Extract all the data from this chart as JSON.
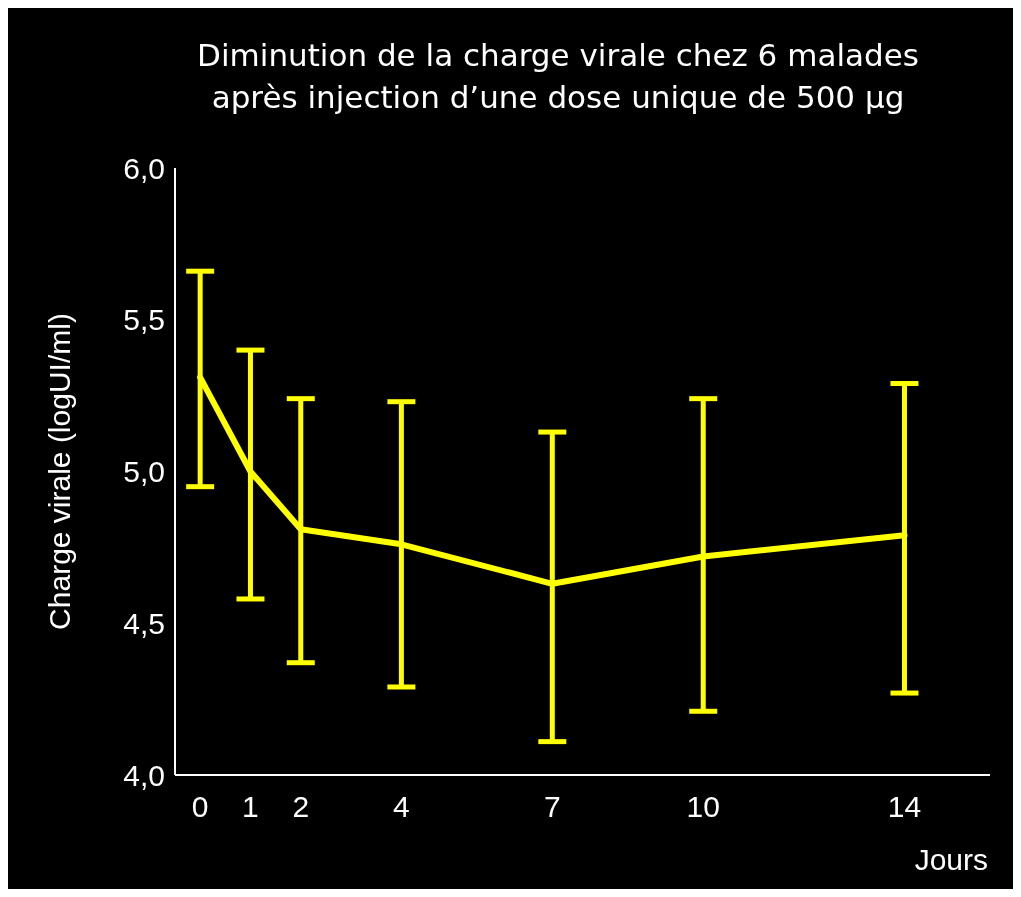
{
  "chart_data": {
    "type": "line",
    "title": "Diminution de la charge virale chez 6 malades\naprès injection d’une dose unique de 500 µg",
    "xlabel": "Jours",
    "ylabel": "Charge virale (logUI/ml)",
    "x": [
      0,
      1,
      2,
      4,
      7,
      10,
      14
    ],
    "series": [
      {
        "color": "#ffff00",
        "values": [
          5.31,
          5.0,
          4.81,
          4.76,
          4.63,
          4.72,
          4.79
        ],
        "errors": [
          [
            4.95,
            5.66
          ],
          [
            4.58,
            5.4
          ],
          [
            4.37,
            5.24
          ],
          [
            4.29,
            5.23
          ],
          [
            4.11,
            5.13
          ],
          [
            4.21,
            5.24
          ],
          [
            4.27,
            5.29
          ]
        ]
      }
    ],
    "xlim": [
      -0.5,
      15.7
    ],
    "xticks": [
      0,
      1,
      2,
      4,
      7,
      10,
      14
    ],
    "ylim": [
      4.0,
      6.0
    ],
    "yticks": [
      {
        "value": 4.0,
        "label": "4,0"
      },
      {
        "value": 4.5,
        "label": "4,5"
      },
      {
        "value": 5.0,
        "label": "5,0"
      },
      {
        "value": 5.5,
        "label": "5,5"
      },
      {
        "value": 6.0,
        "label": "6,0"
      }
    ],
    "grid": false,
    "marker": "none",
    "line_style": "solid"
  }
}
